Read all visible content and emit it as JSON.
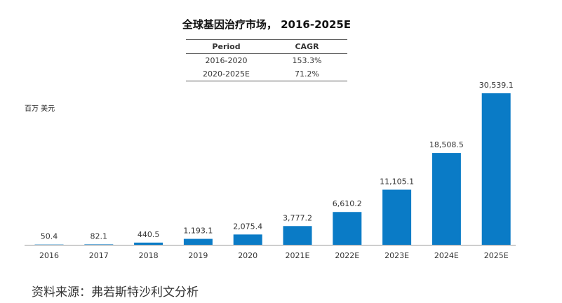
{
  "chart_data": {
    "type": "bar",
    "title": "全球基因治疗市场， 2016-2025E",
    "ylabel": "百万 美元",
    "categories": [
      "2016",
      "2017",
      "2018",
      "2019",
      "2020",
      "2021E",
      "2022E",
      "2023E",
      "2024E",
      "2025E"
    ],
    "values": [
      50.4,
      82.1,
      440.5,
      1193.1,
      2075.4,
      3777.2,
      6610.2,
      11105.1,
      18508.5,
      30539.1
    ],
    "data_labels": [
      "50.4",
      "82.1",
      "440.5",
      "1,193.1",
      "2,075.4",
      "3,777.2",
      "6,610.2",
      "11,105.1",
      "18,508.5",
      "30,539.1"
    ],
    "bar_color": "#0A7BC6",
    "grid": false,
    "cagr_table": {
      "headers": [
        "Period",
        "CAGR"
      ],
      "rows": [
        [
          "2016-2020",
          "153.3%"
        ],
        [
          "2020-2025E",
          "71.2%"
        ]
      ]
    }
  },
  "source": "资料来源：弗若斯特沙利文分析"
}
